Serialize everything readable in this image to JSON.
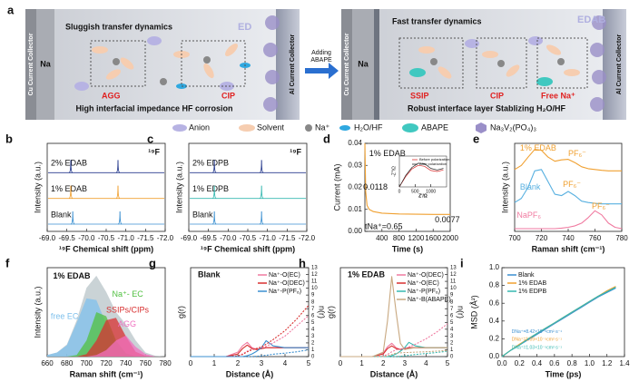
{
  "schematic": {
    "label": "a",
    "left": {
      "title": "Sluggish transfer dynamics",
      "electrolyte": "ED",
      "anode_collector": "Cu  Current Collector",
      "anode": "Na",
      "cathode_collector": "Al Current Collector",
      "labels": [
        "AGG",
        "CIP"
      ],
      "caption": "High interfacial impedance HF corrosion"
    },
    "arrow": [
      "Adding",
      "ABAPE"
    ],
    "right": {
      "title": "Fast transfer dynamics",
      "electrolyte": "EDAB",
      "anode_collector": "Cu  Current Collector",
      "anode": "Na",
      "cathode_collector": "Al Current Collector",
      "labels": [
        "SSIP",
        "CIP",
        "Free Na⁺"
      ],
      "caption": "Robust interface layer  Stablizing H₂O/HF"
    }
  },
  "legend": [
    "Anion",
    "Solvent",
    "Na⁺",
    "H₂O/HF",
    "ABAPE",
    "Na₃V₂(PO₄)₃"
  ],
  "chart_data": [
    {
      "label": "b",
      "type": "spectrum",
      "nucleus": "¹⁹F",
      "xlabel": "¹⁹F Chemical shift (ppm)",
      "ylabel": "Intensity (a.u.)",
      "xlim": [
        -69,
        -72
      ],
      "xticks": [
        {
          "value": -69,
          "label": "-69.0"
        },
        {
          "value": -69.5,
          "label": "-69.5"
        },
        {
          "value": -70,
          "label": "-70.0"
        },
        {
          "value": -70.5,
          "label": "-70.5"
        },
        {
          "value": -71,
          "label": "-71.0"
        },
        {
          "value": -71.5,
          "label": "-71.5"
        },
        {
          "value": -72,
          "label": "-72.0"
        }
      ],
      "series": [
        {
          "name": "Blank",
          "color": "#3a8fd0",
          "peaks": [
            -69.65,
            -70.85
          ]
        },
        {
          "name": "1% EDAB",
          "color": "#f0a030",
          "peaks": [
            -69.6,
            -70.8
          ]
        },
        {
          "name": "2% EDAB",
          "color": "#283c8e",
          "peaks": [
            -69.6,
            -70.8
          ]
        }
      ]
    },
    {
      "label": "c",
      "type": "spectrum",
      "nucleus": "¹⁹F",
      "xlabel": "¹⁹F Chemical shift (ppm)",
      "ylabel": "Intensity (a.u.)",
      "xlim": [
        -69,
        -72
      ],
      "xticks": [
        {
          "value": -69,
          "label": "-69.0"
        },
        {
          "value": -69.5,
          "label": "-69.5"
        },
        {
          "value": -70,
          "label": "-70.0"
        },
        {
          "value": -70.5,
          "label": "-70.5"
        },
        {
          "value": -71,
          "label": "-71.0"
        },
        {
          "value": -71.5,
          "label": "-71.5"
        },
        {
          "value": -72,
          "label": "-72.0"
        }
      ],
      "series": [
        {
          "name": "Blank",
          "color": "#3a8fd0",
          "peaks": [
            -69.65,
            -70.85
          ]
        },
        {
          "name": "1% EDPB",
          "color": "#35b8b0",
          "peaks": [
            -69.65,
            -70.85
          ]
        },
        {
          "name": "2% EDPB",
          "color": "#283c8e",
          "peaks": [
            -69.65,
            -70.85
          ]
        }
      ]
    },
    {
      "label": "d",
      "type": "line",
      "xlabel": "Time (s)",
      "ylabel": "Current (mA)",
      "xlim": [
        0,
        2000
      ],
      "xticks": [
        400,
        800,
        1200,
        1600,
        2000
      ],
      "ylim": [
        0,
        0.04
      ],
      "yticks": [
        {
          "value": 0,
          "label": "0.00"
        },
        {
          "value": 0.01,
          "label": "0.01"
        },
        {
          "value": 0.02,
          "label": "0.02"
        },
        {
          "value": 0.03,
          "label": "0.03"
        },
        {
          "value": 0.04,
          "label": "0.04"
        }
      ],
      "x": [
        0,
        20,
        50,
        100,
        200,
        400,
        800,
        1200,
        1600,
        2000
      ],
      "series": [
        {
          "color": "#f0a030",
          "values": [
            0.04,
            0.018,
            0.0118,
            0.01,
            0.009,
            0.0083,
            0.0079,
            0.0078,
            0.0077,
            0.0077
          ]
        }
      ],
      "annotations": [
        "1% EDAB",
        "0.0118",
        "tNa⁺=0.65",
        "0.0077"
      ]
    },
    {
      "type": "line",
      "xlabel": "Z'/Ω",
      "ylabel": "-Z''/Ω",
      "xlim": [
        0,
        1500
      ],
      "xticks": [
        0,
        500,
        1000
      ],
      "ylim": [
        0,
        600
      ],
      "legend": "upper right",
      "x": [
        0,
        200,
        400,
        600,
        800,
        1000,
        1200,
        1400
      ],
      "series": [
        {
          "name": "Before polarization",
          "color": "#d83030",
          "values": [
            0,
            200,
            350,
            420,
            400,
            320,
            300,
            330
          ]
        },
        {
          "name": "After polarization",
          "color": "#222222",
          "values": [
            0,
            220,
            380,
            460,
            450,
            360,
            330,
            360
          ]
        }
      ]
    },
    {
      "label": "e",
      "type": "line",
      "xlabel": "Raman shift (cm⁻¹)",
      "ylabel": "Intensity (a.u.)",
      "xlim": [
        700,
        780
      ],
      "xticks": [
        700,
        720,
        740,
        760,
        780
      ],
      "ylim": [
        0,
        3.2
      ],
      "x": [
        700,
        705,
        710,
        715,
        720,
        725,
        730,
        735,
        740,
        745,
        750,
        755,
        760,
        765,
        770,
        775,
        780
      ],
      "series": [
        {
          "name": "1% EDAB",
          "color": "#f0a030",
          "values": [
            2.25,
            2.4,
            2.7,
            2.98,
            2.95,
            2.7,
            2.55,
            2.6,
            2.62,
            2.5,
            2.35,
            2.28,
            2.25,
            2.22,
            2.2,
            2.2,
            2.2
          ]
        },
        {
          "name": "Blank",
          "color": "#58b0e0",
          "values": [
            1.05,
            1.2,
            1.6,
            2.2,
            2.25,
            1.8,
            1.35,
            1.3,
            1.45,
            1.3,
            1.1,
            1.05,
            1.02,
            1,
            1,
            1,
            1
          ]
        },
        {
          "name": "NaPF₆",
          "color": "#f07aa0",
          "values": [
            0.1,
            0.1,
            0.1,
            0.1,
            0.1,
            0.1,
            0.1,
            0.12,
            0.15,
            0.2,
            0.3,
            0.5,
            0.75,
            0.6,
            0.3,
            0.15,
            0.1
          ]
        }
      ],
      "annotations": [
        "PF₆⁻",
        "PF₆⁻",
        "PF₆⁻"
      ]
    },
    {
      "label": "f",
      "type": "line",
      "xlabel": "Raman shift (cm⁻¹)",
      "ylabel": "Intensity (a.u.)",
      "xlim": [
        660,
        780
      ],
      "xticks": [
        660,
        680,
        700,
        720,
        740,
        760,
        780
      ],
      "ylim": [
        0,
        1.1
      ],
      "x": [
        660,
        670,
        680,
        690,
        700,
        710,
        720,
        730,
        740,
        750,
        760,
        770,
        780
      ],
      "series": [
        {
          "color": "#b8c4c8",
          "fill": true,
          "values": [
            0.02,
            0.05,
            0.15,
            0.45,
            0.85,
            1,
            0.8,
            0.55,
            0.4,
            0.2,
            0.05,
            0.01,
            0
          ]
        },
        {
          "name": "free EC",
          "color": "#7fc0ec",
          "fill": true,
          "values": [
            0.02,
            0.05,
            0.14,
            0.42,
            0.72,
            0.7,
            0.4,
            0.15,
            0.04,
            0.01,
            0,
            0,
            0
          ]
        },
        {
          "name": "Na⁺- EC",
          "color": "#50c040",
          "fill": true,
          "values": [
            0,
            0,
            0,
            0.02,
            0.2,
            0.55,
            0.5,
            0.2,
            0.04,
            0,
            0,
            0,
            0
          ]
        },
        {
          "name": "SSIPs/CIPs",
          "color": "#d83030",
          "fill": true,
          "values": [
            0,
            0,
            0,
            0,
            0.03,
            0.2,
            0.45,
            0.48,
            0.25,
            0.06,
            0.01,
            0,
            0
          ]
        },
        {
          "name": "AGG",
          "color": "#f070c0",
          "fill": true,
          "values": [
            0,
            0,
            0,
            0,
            0,
            0.02,
            0.08,
            0.2,
            0.26,
            0.12,
            0.03,
            0,
            0
          ]
        }
      ],
      "annotations": [
        "1% EDAB"
      ]
    },
    {
      "label": "g",
      "type": "line",
      "title": "Blank",
      "xlabel": "Distance (Å)",
      "ylabel": "g(r)",
      "y2label": "n(r)",
      "xlim": [
        0,
        5
      ],
      "xticks": [
        0,
        1,
        2,
        3,
        4,
        5
      ],
      "ylim": [
        0,
        10
      ],
      "y2lim": [
        0,
        13
      ],
      "y2ticks": [
        0,
        1,
        2,
        3,
        4,
        5,
        6,
        7,
        8,
        9,
        10,
        11,
        12,
        13
      ],
      "legend": "upper right",
      "x": [
        0,
        1,
        1.5,
        2,
        2.2,
        2.4,
        2.6,
        2.8,
        3,
        3.2,
        3.5,
        4,
        4.5,
        5
      ],
      "series": [
        {
          "name": "Na⁺-O(EC)",
          "color": "#f07aa0",
          "values": [
            0,
            0,
            0,
            0.5,
            1.2,
            1.6,
            1,
            0.8,
            0.9,
            1,
            1,
            1,
            1,
            1
          ]
        },
        {
          "name": "Na⁺-O(DEC)",
          "color": "#d83030",
          "values": [
            0,
            0,
            0,
            0.3,
            0.9,
            1.3,
            0.9,
            0.8,
            0.9,
            1,
            1,
            1,
            1,
            1
          ]
        },
        {
          "name": "Na⁺-P(PF₆)",
          "color": "#3a8fd0",
          "values": [
            0,
            0,
            0,
            0,
            0,
            0.1,
            0.3,
            0.6,
            1,
            1.8,
            1.2,
            1,
            1,
            1
          ]
        },
        {
          "color": "#f07aa0",
          "axis": "y2",
          "dash": true,
          "values": [
            0,
            0,
            0,
            0.1,
            0.4,
            0.8,
            1.1,
            1.2,
            1.3,
            1.5,
            2,
            3,
            4.5,
            6
          ]
        },
        {
          "color": "#d83030",
          "axis": "y2",
          "dash": true,
          "values": [
            0,
            0,
            0,
            0.1,
            0.3,
            0.7,
            1,
            1.2,
            1.4,
            1.8,
            2.5,
            3.8,
            5.5,
            7.5
          ]
        },
        {
          "color": "#3a8fd0",
          "axis": "y2",
          "dash": true,
          "values": [
            0,
            0,
            0,
            0,
            0,
            0,
            0,
            0.05,
            0.1,
            0.2,
            0.35,
            0.5,
            0.7,
            1
          ]
        }
      ]
    },
    {
      "label": "h",
      "type": "line",
      "title": "1% EDAB",
      "xlabel": "Distance (Å)",
      "ylabel": "g(r)",
      "y2label": "n(r)",
      "xlim": [
        0,
        5
      ],
      "xticks": [
        0,
        1,
        2,
        3,
        4,
        5
      ],
      "ylim": [
        0,
        10
      ],
      "y2lim": [
        0,
        13
      ],
      "y2ticks": [
        0,
        1,
        2,
        3,
        4,
        5,
        6,
        7,
        8,
        9,
        10,
        11,
        12,
        13
      ],
      "legend": "upper right",
      "x": [
        0,
        1,
        1.5,
        2,
        2.2,
        2.4,
        2.6,
        2.8,
        3,
        3.2,
        3.5,
        4,
        4.5,
        5
      ],
      "series": [
        {
          "name": "Na⁺-O(DEC)",
          "color": "#f07aa0",
          "values": [
            0,
            0,
            0,
            0.4,
            1.1,
            1.5,
            1,
            0.8,
            0.9,
            1,
            1,
            1,
            1,
            1
          ]
        },
        {
          "name": "Na⁺-O(EC)",
          "color": "#d83030",
          "values": [
            0,
            0,
            0,
            0.3,
            0.9,
            1.2,
            0.9,
            0.8,
            0.9,
            1,
            1,
            1,
            1,
            1
          ]
        },
        {
          "name": "Na⁺-P(PF₆)",
          "color": "#35b8b0",
          "values": [
            0,
            0,
            0,
            0,
            0,
            0.1,
            0.3,
            0.6,
            1,
            1.6,
            1.2,
            1,
            1,
            1
          ]
        },
        {
          "name": "Na⁺-B(ABAPE)",
          "color": "#c8a880",
          "values": [
            0,
            0,
            0,
            0.5,
            4,
            9,
            5,
            1.5,
            0.8,
            0.9,
            1,
            1,
            1,
            1
          ]
        },
        {
          "color": "#f07aa0",
          "axis": "y2",
          "dash": true,
          "values": [
            0,
            0,
            0,
            0.1,
            0.3,
            0.7,
            1,
            1.1,
            1.2,
            1.4,
            1.8,
            2.6,
            3.6,
            4.8
          ]
        },
        {
          "color": "#35b8b0",
          "axis": "y2",
          "dash": true,
          "values": [
            0,
            0,
            0,
            0,
            0,
            0,
            0,
            0.05,
            0.1,
            0.2,
            0.3,
            0.45,
            0.6,
            0.8
          ]
        },
        {
          "color": "#c8a880",
          "axis": "y2",
          "dash": true,
          "values": [
            0,
            0,
            0,
            0,
            0.1,
            0.3,
            0.5,
            0.55,
            0.6,
            0.6,
            0.65,
            0.7,
            0.8,
            0.9
          ]
        }
      ]
    },
    {
      "label": "i",
      "type": "line",
      "xlabel": "Time (ps)",
      "ylabel": "MSD (Å²)",
      "xlim": [
        0,
        1.4
      ],
      "xticks": [
        {
          "value": 0,
          "label": "0.0"
        },
        0.2,
        0.4,
        0.6,
        0.8,
        {
          "value": 1,
          "label": "1.0"
        },
        1.2,
        1.4
      ],
      "ylim": [
        0,
        1
      ],
      "yticks": [
        {
          "value": 0,
          "label": "0.0"
        },
        0.2,
        0.4,
        0.6,
        0.8,
        {
          "value": 1,
          "label": "1.0"
        }
      ],
      "legend": "upper left",
      "x": [
        0,
        0.1,
        0.2,
        0.3,
        0.4,
        0.5,
        0.6,
        0.7,
        0.8,
        0.9,
        1,
        1.1,
        1.2,
        1.3
      ],
      "series": [
        {
          "name": "Blank",
          "color": "#3a8fd0",
          "values": [
            0,
            0.07,
            0.13,
            0.19,
            0.25,
            0.31,
            0.37,
            0.43,
            0.49,
            0.55,
            0.61,
            0.67,
            0.72,
            0.77
          ]
        },
        {
          "name": "1% EDAB",
          "color": "#f0a030",
          "values": [
            0,
            0.07,
            0.14,
            0.2,
            0.26,
            0.32,
            0.38,
            0.44,
            0.5,
            0.56,
            0.62,
            0.68,
            0.74,
            0.79
          ]
        },
        {
          "name": "1% EDPB",
          "color": "#35b8b0",
          "values": [
            0,
            0.07,
            0.13,
            0.2,
            0.26,
            0.32,
            0.38,
            0.44,
            0.5,
            0.56,
            0.62,
            0.68,
            0.73,
            0.78
          ]
        }
      ],
      "annotations": [
        "DNa⁺=8.42×10⁻⁶cm²·s⁻¹",
        "DNa⁺=1.09×10⁻⁵cm²·s⁻¹",
        "DNa⁺=1.03×10⁻⁵cm²·s⁻¹"
      ]
    }
  ]
}
